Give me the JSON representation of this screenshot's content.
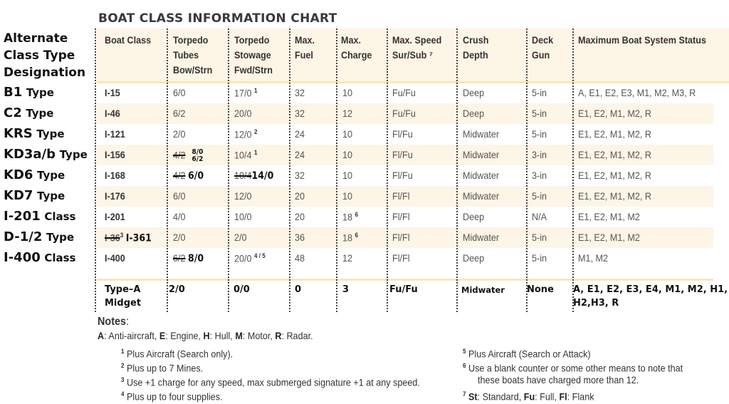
{
  "title": "BOAT CLASS INFORMATION CHART",
  "alternate_header": [
    "Alternate",
    "Class Type",
    "Designation"
  ],
  "columns": [
    {
      "key": "boat_class",
      "lines": [
        "Boat Class"
      ]
    },
    {
      "key": "tubes",
      "lines": [
        "Torpedo",
        "Tubes",
        "Bow/Strn"
      ]
    },
    {
      "key": "stowage",
      "lines": [
        "Torpedo",
        "Stowage",
        "Fwd/Strn"
      ]
    },
    {
      "key": "fuel",
      "lines": [
        "Max.",
        "Fuel"
      ]
    },
    {
      "key": "charge",
      "lines": [
        "Max.",
        "Charge"
      ]
    },
    {
      "key": "speed",
      "lines": [
        "Max. Speed",
        "Sur/Sub ⁷"
      ]
    },
    {
      "key": "depth",
      "lines": [
        "Crush",
        "Depth"
      ]
    },
    {
      "key": "gun",
      "lines": [
        "Deck",
        "Gun"
      ]
    },
    {
      "key": "status",
      "lines": [
        "Maximum Boat System Status"
      ]
    }
  ],
  "rows": [
    {
      "alt_main": "B1",
      "alt_suffix": "Type",
      "boat_class": "I-15",
      "tubes": "6/0",
      "tubes_struck": "",
      "tubes_fix": "",
      "tubes_fix_stack": [],
      "stowage": "17/0",
      "stowage_sup": "1",
      "stowage_struck": "",
      "stowage_fix": "",
      "fuel": "32",
      "charge": "10",
      "charge_sup": "",
      "speed": "Fu/Fu",
      "depth": "Deep",
      "gun": "5-in",
      "status": "A, E1, E2, E3, M1, M2, M3, R"
    },
    {
      "alt_main": "C2",
      "alt_suffix": "Type",
      "boat_class": "I-46",
      "tubes": "6/2",
      "tubes_struck": "",
      "tubes_fix": "",
      "tubes_fix_stack": [],
      "stowage": "20/0",
      "stowage_sup": "",
      "stowage_struck": "",
      "stowage_fix": "",
      "fuel": "32",
      "charge": "12",
      "charge_sup": "",
      "speed": "Fu/Fu",
      "depth": "Deep",
      "gun": "5-in",
      "status": "E1, E2, M1, M2, R"
    },
    {
      "alt_main": "KRS",
      "alt_suffix": "Type",
      "boat_class": "I-121",
      "tubes": "2/0",
      "tubes_struck": "",
      "tubes_fix": "",
      "tubes_fix_stack": [],
      "stowage": "12/0",
      "stowage_sup": "2",
      "stowage_struck": "",
      "stowage_fix": "",
      "fuel": "24",
      "charge": "10",
      "charge_sup": "",
      "speed": "Fl/Fu",
      "depth": "Midwater",
      "gun": "5-in",
      "status": "E1, E2, M1, M2, R"
    },
    {
      "alt_main": "KD3a/b",
      "alt_suffix": "Type",
      "boat_class": "I-156",
      "tubes": "",
      "tubes_struck": "4/2",
      "tubes_fix": "",
      "tubes_fix_stack": [
        "8/0",
        "6/2"
      ],
      "stowage": "10/4",
      "stowage_sup": "1",
      "stowage_struck": "",
      "stowage_fix": "",
      "fuel": "24",
      "charge": "10",
      "charge_sup": "",
      "speed": "Fl/Fu",
      "depth": "Midwater",
      "gun": "3-in",
      "status": "E1, E2, M1, M2, R"
    },
    {
      "alt_main": "KD6",
      "alt_suffix": "Type",
      "boat_class": "I-168",
      "tubes": "",
      "tubes_struck": "4/2",
      "tubes_fix": "6/0",
      "tubes_fix_stack": [],
      "stowage": "",
      "stowage_sup": "",
      "stowage_struck": "10/4",
      "stowage_fix": "14/0",
      "fuel": "32",
      "charge": "10",
      "charge_sup": "",
      "speed": "Fl/Fu",
      "depth": "Midwater",
      "gun": "3-in",
      "status": "E1, E2, M1, M2, R"
    },
    {
      "alt_main": "KD7",
      "alt_suffix": "Type",
      "boat_class": "I-176",
      "tubes": "6/0",
      "tubes_struck": "",
      "tubes_fix": "",
      "tubes_fix_stack": [],
      "stowage": "12/0",
      "stowage_sup": "",
      "stowage_struck": "",
      "stowage_fix": "",
      "fuel": "20",
      "charge": "10",
      "charge_sup": "",
      "speed": "Fl/Fl",
      "depth": "Midwater",
      "gun": "5-in",
      "status": "E1, E2, M1, M2, R"
    },
    {
      "alt_main": "I-201",
      "alt_suffix": "Class",
      "boat_class": "I-201",
      "tubes": "4/0",
      "tubes_struck": "",
      "tubes_fix": "",
      "tubes_fix_stack": [],
      "stowage": "10/0",
      "stowage_sup": "",
      "stowage_struck": "",
      "stowage_fix": "",
      "fuel": "20",
      "charge": "18",
      "charge_sup": "6",
      "speed": "Fl/Fl",
      "depth": "Deep",
      "gun": "N/A",
      "status": "E1, E2, M1, M2"
    },
    {
      "alt_main": "D-1/2",
      "alt_suffix": "Type",
      "boat_class": "",
      "boat_class_struck": "I-36",
      "boat_class_sup": "3",
      "boat_class_fix": "I-361",
      "tubes": "2/0",
      "tubes_struck": "",
      "tubes_fix": "",
      "tubes_fix_stack": [],
      "stowage": "2/0",
      "stowage_sup": "",
      "stowage_struck": "",
      "stowage_fix": "",
      "fuel": "36",
      "charge": "18",
      "charge_sup": "6",
      "speed": "Fl/Fl",
      "depth": "Midwater",
      "gun": "5-in",
      "status": "E1, E2, M1, M2"
    },
    {
      "alt_main": "I-400",
      "alt_suffix": "Class",
      "boat_class": "I-400",
      "tubes": "",
      "tubes_struck": "6/2",
      "tubes_fix": "8/0",
      "tubes_fix_stack": [],
      "stowage": "20/0",
      "stowage_sup": "4 / 5",
      "stowage_struck": "",
      "stowage_fix": "",
      "fuel": "48",
      "charge": "12",
      "charge_sup": "",
      "speed": "Fl/Fl",
      "depth": "Deep",
      "gun": "5-in",
      "status": "M1, M2"
    }
  ],
  "midget": {
    "boat_class": [
      "Type–A",
      "Midget"
    ],
    "tubes": "2/0",
    "stowage": "0/0",
    "fuel": "0",
    "charge": "3",
    "speed": "Fu/Fu",
    "depth": "Midwater",
    "gun": "None",
    "status": [
      "A, E1, E2, E3, E4, M1, M2, H1,",
      "H2,H3, R"
    ]
  },
  "notes": {
    "heading": "Notes",
    "legend": [
      {
        "key": "A",
        "text": ": Anti-aircraft, "
      },
      {
        "key": "E",
        "text": ": Engine, "
      },
      {
        "key": "H",
        "text": ": Hull, "
      },
      {
        "key": "M",
        "text": ": Motor, "
      },
      {
        "key": "R",
        "text": ": Radar."
      }
    ],
    "footnotes_left": [
      {
        "num": "1",
        "text": "Plus Aircraft (Search only)."
      },
      {
        "num": "2",
        "text": "Plus up to 7 Mines."
      },
      {
        "num": "3",
        "text": "Use +1 charge for any speed, max submerged signature +1 at any speed."
      },
      {
        "num": "4",
        "text": "Plus up to four supplies."
      }
    ],
    "footnotes_right": [
      {
        "num": "5",
        "text": "Plus Aircraft (Search or Attack)"
      },
      {
        "num": "6",
        "text": "Use a blank counter or some other means to note that",
        "text2": "these boats have charged more than 12."
      },
      {
        "num": "7",
        "parts": [
          {
            "b": "St",
            "t": ": Standard, "
          },
          {
            "b": "Fu",
            "t": ": Full, "
          },
          {
            "b": "Fl",
            "t": ": Flank"
          }
        ]
      }
    ]
  }
}
